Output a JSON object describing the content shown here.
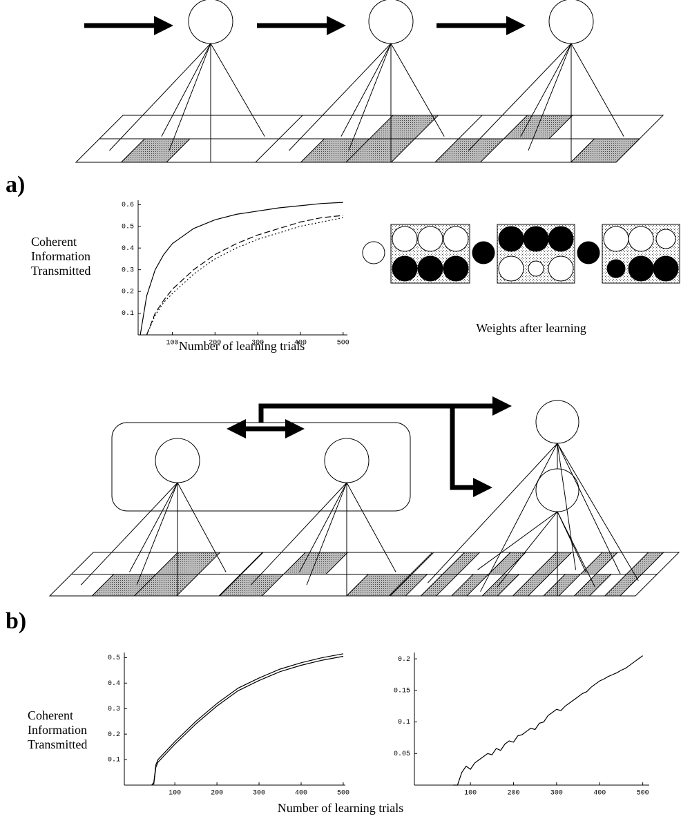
{
  "labels": {
    "a": "a)",
    "b": "b)"
  },
  "weights_caption": "Weights after learning",
  "chart_data": [
    {
      "type": "line",
      "ylabel": [
        "Coherent",
        "Information",
        "Transmitted"
      ],
      "xlabel": "Number of learning trials",
      "x": [
        25,
        40,
        60,
        80,
        100,
        150,
        200,
        250,
        300,
        350,
        400,
        450,
        500
      ],
      "series": [
        {
          "color": "#000000",
          "dash": "solid",
          "values": [
            0,
            0.18,
            0.3,
            0.37,
            0.42,
            0.49,
            0.53,
            0.555,
            0.57,
            0.585,
            0.595,
            0.605,
            0.61
          ]
        },
        {
          "color": "#000000",
          "dash": "dashed",
          "values": [
            null,
            0,
            0.1,
            0.16,
            0.21,
            0.3,
            0.37,
            0.42,
            0.46,
            0.49,
            0.52,
            0.54,
            0.55
          ]
        },
        {
          "color": "#000000",
          "dash": "dotted",
          "values": [
            null,
            0,
            0.09,
            0.15,
            0.19,
            0.28,
            0.35,
            0.4,
            0.44,
            0.47,
            0.5,
            0.52,
            0.54
          ]
        }
      ],
      "xlim": [
        20,
        510
      ],
      "ylim": [
        0,
        0.62
      ],
      "xticks": [
        100,
        200,
        300,
        400,
        500
      ],
      "yticks": [
        0.1,
        0.2,
        0.3,
        0.4,
        0.5,
        0.6
      ]
    },
    {
      "type": "line",
      "ylabel": [
        "Coherent",
        "Information",
        "Transmitted"
      ],
      "xlabel": "Number of learning trials",
      "x": [
        45,
        50,
        55,
        60,
        100,
        150,
        200,
        250,
        300,
        350,
        400,
        450,
        500
      ],
      "series": [
        {
          "color": "#000000",
          "dash": "solid",
          "values": [
            0,
            0.01,
            0.08,
            0.1,
            0.17,
            0.25,
            0.32,
            0.38,
            0.42,
            0.455,
            0.48,
            0.5,
            0.515
          ]
        },
        {
          "color": "#000000",
          "dash": "solid",
          "values": [
            0,
            0.005,
            0.07,
            0.09,
            0.16,
            0.24,
            0.31,
            0.37,
            0.41,
            0.445,
            0.47,
            0.49,
            0.505
          ]
        }
      ],
      "xlim": [
        -20,
        505
      ],
      "ylim": [
        0,
        0.52
      ],
      "xticks": [
        100,
        200,
        300,
        400,
        500
      ],
      "yticks": [
        0.1,
        0.2,
        0.3,
        0.4,
        0.5
      ]
    },
    {
      "type": "line",
      "x": [
        60,
        70,
        80,
        90,
        100,
        110,
        120,
        130,
        140,
        150,
        160,
        170,
        180,
        190,
        200,
        210,
        220,
        230,
        240,
        250,
        260,
        270,
        280,
        290,
        300,
        310,
        320,
        330,
        340,
        350,
        360,
        370,
        380,
        390,
        400,
        410,
        420,
        430,
        440,
        450,
        460,
        470,
        480,
        490,
        500
      ],
      "series": [
        {
          "color": "#000000",
          "dash": "solid",
          "values": [
            0,
            0,
            0.02,
            0.03,
            0.025,
            0.035,
            0.04,
            0.045,
            0.05,
            0.048,
            0.058,
            0.055,
            0.065,
            0.07,
            0.068,
            0.078,
            0.08,
            0.085,
            0.09,
            0.088,
            0.098,
            0.1,
            0.11,
            0.115,
            0.12,
            0.118,
            0.125,
            0.13,
            0.135,
            0.14,
            0.145,
            0.148,
            0.155,
            0.16,
            0.165,
            0.168,
            0.172,
            0.175,
            0.178,
            0.182,
            0.185,
            0.19,
            0.195,
            0.2,
            0.205
          ]
        }
      ],
      "xlim": [
        -30,
        515
      ],
      "ylim": [
        0,
        0.21
      ],
      "xticks": [
        100,
        200,
        300,
        400,
        500
      ],
      "yticks": [
        0.05,
        0.1,
        0.15,
        0.2
      ]
    }
  ]
}
